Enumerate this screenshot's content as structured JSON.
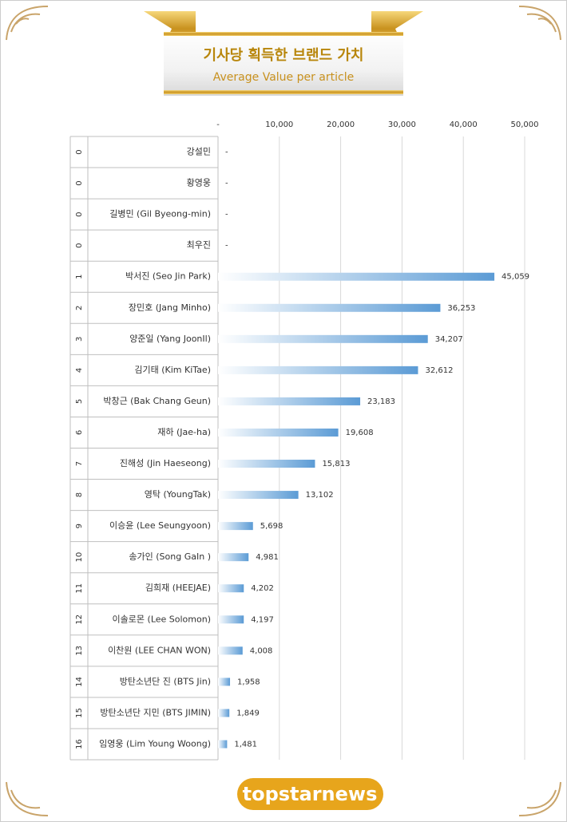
{
  "chart_data": {
    "type": "bar",
    "orientation": "horizontal",
    "title": "기사당 획득한 브랜드 가치",
    "subtitle": "Average Value per article",
    "ranks": [
      0,
      0,
      0,
      0,
      1,
      2,
      3,
      4,
      5,
      6,
      7,
      8,
      9,
      10,
      11,
      12,
      13,
      14,
      15,
      16
    ],
    "categories": [
      "강설민",
      "황영웅",
      "길병민 (Gil Byeong-min)",
      "최우진",
      "박서진 (Seo Jin Park)",
      "장민호 (Jang Minho)",
      "양준일 (Yang JoonIl)",
      "김기태 (Kim KiTae)",
      "박창근 (Bak Chang Geun)",
      "재하 (Jae-ha)",
      "진해성 (Jin Haeseong)",
      "영탁 (YoungTak)",
      "이승윤 (Lee Seungyoon)",
      "송가인 (Song GaIn )",
      "김희재 (HEEJAE)",
      "이솔로몬 (Lee Solomon)",
      "이찬원 (LEE CHAN WON)",
      "방탄소년단 진 (BTS Jin)",
      "방탄소년단 지민 (BTS JIMIN)",
      "임영웅 (Lim Young Woong)"
    ],
    "values": [
      0,
      0,
      0,
      0,
      45059,
      36253,
      34207,
      32612,
      23183,
      19608,
      15813,
      13102,
      5698,
      4981,
      4202,
      4197,
      4008,
      1958,
      1849,
      1481
    ],
    "value_labels": [
      "-",
      "-",
      "-",
      "-",
      "45,059",
      "36,253",
      "34,207",
      "32,612",
      "23,183",
      "19,608",
      "15,813",
      "13,102",
      "5,698",
      "4,981",
      "4,202",
      "4,197",
      "4,008",
      "1,958",
      "1,849",
      "1,481"
    ],
    "color": "#5b9bd5",
    "xlim": [
      0,
      50000
    ],
    "xticks": [
      {
        "value": 0,
        "label": "-"
      },
      {
        "value": 10000,
        "label": "10,000"
      },
      {
        "value": 20000,
        "label": "20,000"
      },
      {
        "value": 30000,
        "label": "30,000"
      },
      {
        "value": 40000,
        "label": "40,000"
      },
      {
        "value": 50000,
        "label": "50,000"
      }
    ],
    "grid": true
  },
  "logo": "topstarnews"
}
